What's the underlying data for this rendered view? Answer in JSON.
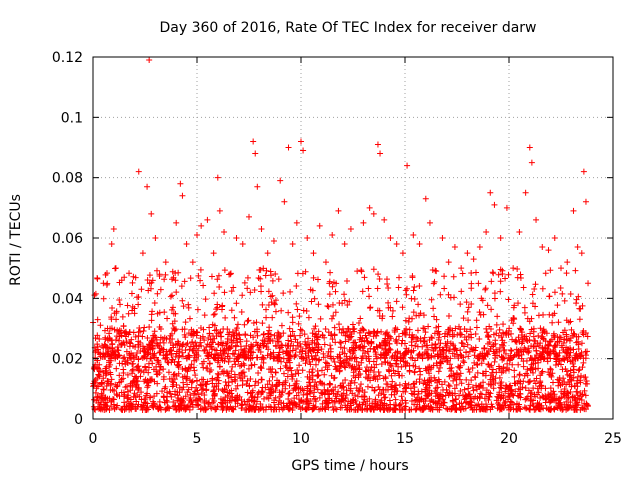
{
  "chart_data": {
    "type": "scatter",
    "title": "Day 360 of 2016, Rate Of TEC Index for receiver darw",
    "xlabel": "GPS time / hours",
    "ylabel": "ROTI / TECUs",
    "xlim": [
      0,
      25
    ],
    "ylim": [
      0,
      0.12
    ],
    "xticks": [
      0,
      5,
      10,
      15,
      20,
      25
    ],
    "xtick_labels": [
      "0",
      "5",
      "10",
      "15",
      "20",
      "25"
    ],
    "yticks": [
      0,
      0.02,
      0.04,
      0.06,
      0.08,
      0.1,
      0.12
    ],
    "ytick_labels": [
      "0",
      "0.02",
      "0.04",
      "0.06",
      "0.08",
      "0.1",
      "0.12"
    ],
    "grid": true,
    "marker": "plus",
    "color": "#ff0000",
    "points": [
      [
        0.1,
        0.012
      ],
      [
        0.3,
        0.018
      ],
      [
        0.5,
        0.045
      ],
      [
        0.7,
        0.03
      ],
      [
        0.9,
        0.058
      ],
      [
        1.0,
        0.063
      ],
      [
        1.1,
        0.05
      ],
      [
        1.3,
        0.038
      ],
      [
        1.5,
        0.047
      ],
      [
        1.7,
        0.028
      ],
      [
        2.0,
        0.035
      ],
      [
        2.2,
        0.082
      ],
      [
        2.4,
        0.055
      ],
      [
        2.6,
        0.077
      ],
      [
        2.7,
        0.119
      ],
      [
        2.8,
        0.068
      ],
      [
        3.0,
        0.06
      ],
      [
        3.2,
        0.048
      ],
      [
        3.5,
        0.052
      ],
      [
        3.8,
        0.041
      ],
      [
        4.0,
        0.065
      ],
      [
        4.2,
        0.078
      ],
      [
        4.3,
        0.074
      ],
      [
        4.5,
        0.058
      ],
      [
        4.8,
        0.052
      ],
      [
        5.0,
        0.061
      ],
      [
        5.2,
        0.064
      ],
      [
        5.5,
        0.066
      ],
      [
        5.8,
        0.055
      ],
      [
        6.0,
        0.08
      ],
      [
        6.1,
        0.069
      ],
      [
        6.3,
        0.062
      ],
      [
        6.6,
        0.048
      ],
      [
        6.9,
        0.06
      ],
      [
        7.2,
        0.058
      ],
      [
        7.5,
        0.067
      ],
      [
        7.7,
        0.092
      ],
      [
        7.8,
        0.088
      ],
      [
        7.9,
        0.077
      ],
      [
        8.1,
        0.063
      ],
      [
        8.4,
        0.055
      ],
      [
        8.7,
        0.059
      ],
      [
        9.0,
        0.079
      ],
      [
        9.2,
        0.072
      ],
      [
        9.4,
        0.09
      ],
      [
        9.6,
        0.058
      ],
      [
        9.8,
        0.065
      ],
      [
        10.0,
        0.092
      ],
      [
        10.1,
        0.089
      ],
      [
        10.3,
        0.06
      ],
      [
        10.6,
        0.055
      ],
      [
        10.9,
        0.064
      ],
      [
        11.2,
        0.052
      ],
      [
        11.5,
        0.061
      ],
      [
        11.8,
        0.069
      ],
      [
        12.1,
        0.058
      ],
      [
        12.4,
        0.063
      ],
      [
        12.7,
        0.049
      ],
      [
        13.0,
        0.065
      ],
      [
        13.3,
        0.07
      ],
      [
        13.5,
        0.068
      ],
      [
        13.7,
        0.091
      ],
      [
        13.8,
        0.088
      ],
      [
        14.0,
        0.066
      ],
      [
        14.3,
        0.06
      ],
      [
        14.6,
        0.058
      ],
      [
        14.9,
        0.055
      ],
      [
        15.1,
        0.084
      ],
      [
        15.4,
        0.061
      ],
      [
        15.7,
        0.058
      ],
      [
        16.0,
        0.073
      ],
      [
        16.2,
        0.065
      ],
      [
        16.5,
        0.049
      ],
      [
        16.8,
        0.06
      ],
      [
        17.1,
        0.052
      ],
      [
        17.4,
        0.057
      ],
      [
        17.7,
        0.05
      ],
      [
        18.0,
        0.055
      ],
      [
        18.3,
        0.053
      ],
      [
        18.6,
        0.057
      ],
      [
        18.9,
        0.062
      ],
      [
        19.1,
        0.075
      ],
      [
        19.3,
        0.071
      ],
      [
        19.6,
        0.06
      ],
      [
        19.9,
        0.07
      ],
      [
        20.2,
        0.05
      ],
      [
        20.5,
        0.062
      ],
      [
        20.8,
        0.075
      ],
      [
        21.0,
        0.09
      ],
      [
        21.1,
        0.085
      ],
      [
        21.3,
        0.066
      ],
      [
        21.6,
        0.057
      ],
      [
        21.9,
        0.056
      ],
      [
        22.2,
        0.06
      ],
      [
        22.5,
        0.05
      ],
      [
        22.8,
        0.052
      ],
      [
        23.1,
        0.069
      ],
      [
        23.3,
        0.057
      ],
      [
        23.5,
        0.055
      ],
      [
        23.6,
        0.082
      ],
      [
        23.7,
        0.072
      ],
      [
        23.8,
        0.045
      ]
    ],
    "baseline_band": {
      "description_free": true,
      "x_range": [
        0,
        23.8
      ],
      "y_range": [
        0.003,
        0.03
      ]
    }
  }
}
